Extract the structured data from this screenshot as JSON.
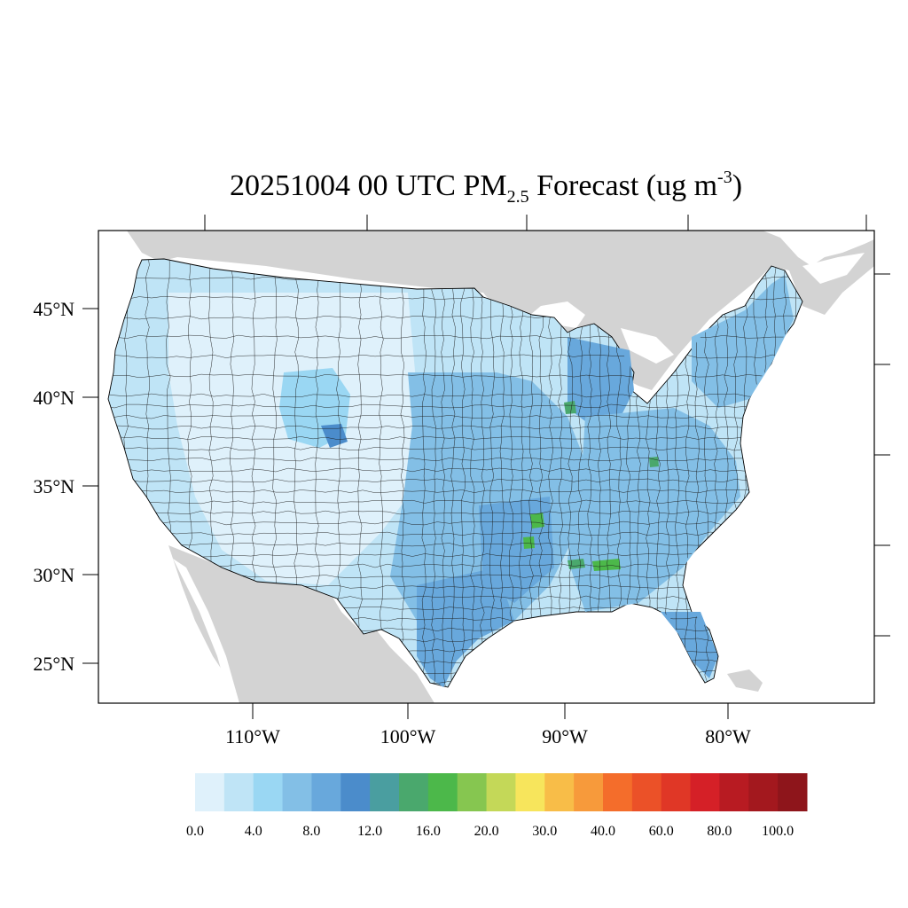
{
  "title": {
    "prefix": "20251004 00 UTC PM",
    "subscript": "2.5",
    "suffix": " Forecast (ug m",
    "superscript": "-3",
    "close": ")"
  },
  "latitude_labels": [
    "45°N",
    "40°N",
    "35°N",
    "30°N",
    "25°N"
  ],
  "longitude_labels": [
    "110°W",
    "100°W",
    "90°W",
    "80°W"
  ],
  "colorbar": {
    "labels": [
      "0.0",
      "4.0",
      "8.0",
      "12.0",
      "16.0",
      "20.0",
      "30.0",
      "40.0",
      "60.0",
      "80.0",
      "100.0"
    ],
    "colors": [
      "#dff1fb",
      "#bfe4f6",
      "#9ad7f3",
      "#83bfe6",
      "#68a8dc",
      "#4b8ccb",
      "#4a9ea0",
      "#4aa86d",
      "#4cb84a",
      "#86c650",
      "#c4d858",
      "#f7e55c",
      "#f8bd48",
      "#f79a3b",
      "#f46d2b",
      "#eb5128",
      "#e03726",
      "#d52027",
      "#b81b22",
      "#a3181e",
      "#8e151b"
    ]
  },
  "colors": {
    "background_land": "#d3d3d3",
    "water": "#ffffff",
    "outline": "#000000"
  }
}
